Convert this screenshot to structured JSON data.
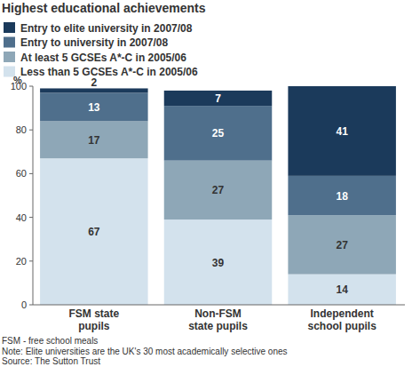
{
  "chart_data": {
    "type": "bar",
    "title": "Highest educational achievements",
    "y_label": "%",
    "categories": [
      "FSM state pupils",
      "Non-FSM state pupils",
      "Independent school pupils"
    ],
    "series": [
      {
        "name": "Less than 5 GCSEs A*-C in 2005/06",
        "color": "#d3e2ed",
        "values": [
          67,
          39,
          14
        ]
      },
      {
        "name": "At least 5 GCSEs A*-C in 2005/06",
        "color": "#8ea7b7",
        "values": [
          17,
          27,
          27
        ]
      },
      {
        "name": "Entry to university in 2007/08",
        "color": "#4f6f8c",
        "values": [
          13,
          25,
          18
        ]
      },
      {
        "name": "Entry to elite university in 2007/08",
        "color": "#1b3a5b",
        "values": [
          2,
          7,
          41
        ]
      }
    ],
    "ylim": [
      0,
      100
    ],
    "yticks": [
      0,
      20,
      40,
      60,
      80,
      100
    ],
    "stacked": true,
    "data_labels": true,
    "grid": false,
    "legend": "top-left",
    "annotations": [
      "FSM - free school meals",
      "Note: Elite universities are the UK's 30 most academically selective ones",
      "Source: The Sutton Trust"
    ]
  }
}
